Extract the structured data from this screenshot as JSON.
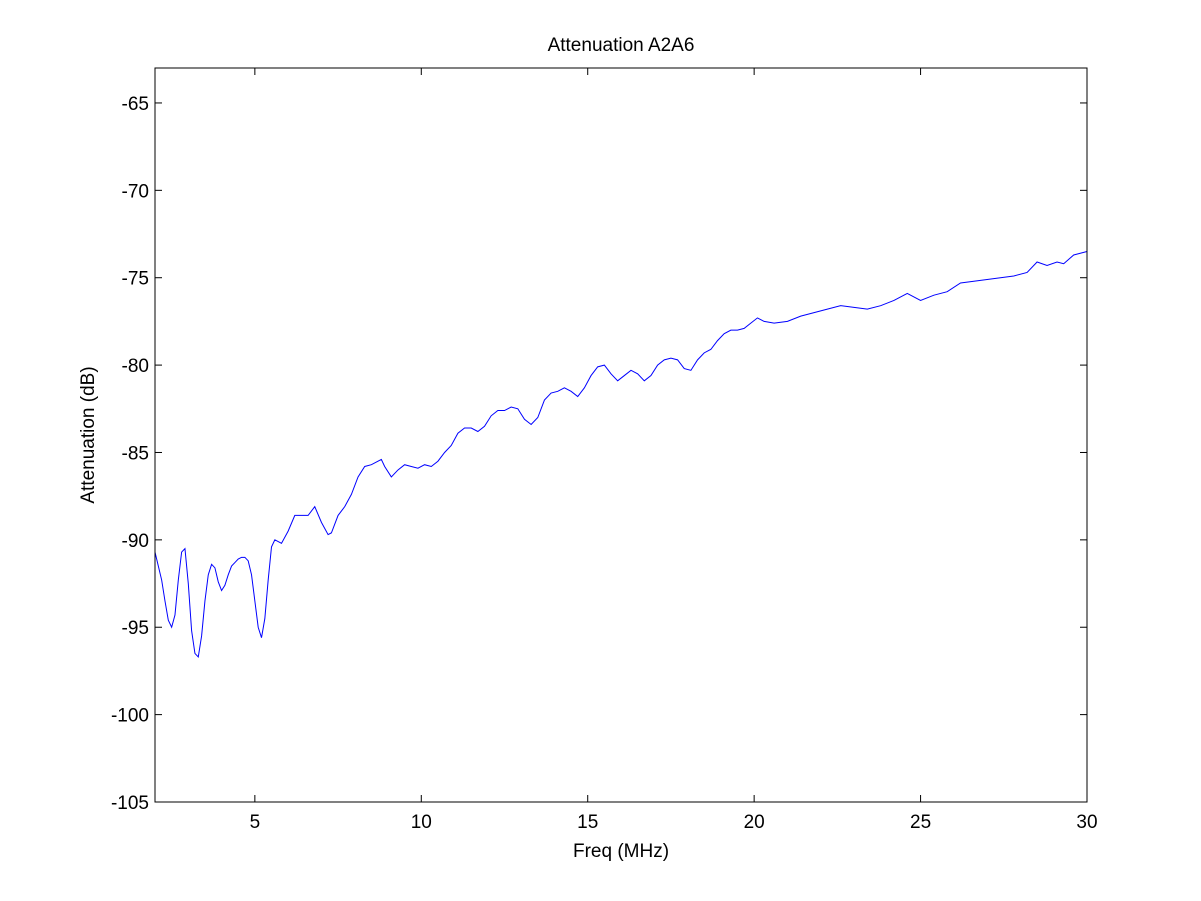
{
  "chart_data": {
    "type": "line",
    "title": "Attenuation A2A6",
    "xlabel": "Freq (MHz)",
    "ylabel": "Attenuation (dB)",
    "xlim": [
      2,
      30
    ],
    "ylim": [
      -105,
      -63
    ],
    "xticks": [
      5,
      10,
      15,
      20,
      25,
      30
    ],
    "yticks": [
      -105,
      -100,
      -95,
      -90,
      -85,
      -80,
      -75,
      -70,
      -65
    ],
    "xtick_labels": [
      "5",
      "10",
      "15",
      "20",
      "25",
      "30"
    ],
    "ytick_labels": [
      "-105",
      "-100",
      "-95",
      "-90",
      "-85",
      "-80",
      "-75",
      "-70",
      "-65"
    ],
    "grid": false,
    "series": [
      {
        "color": "#0000ff",
        "x": [
          2.0,
          2.2,
          2.3,
          2.4,
          2.5,
          2.6,
          2.7,
          2.8,
          2.9,
          3.0,
          3.1,
          3.2,
          3.3,
          3.4,
          3.5,
          3.6,
          3.7,
          3.8,
          3.9,
          4.0,
          4.1,
          4.2,
          4.3,
          4.4,
          4.5,
          4.6,
          4.7,
          4.8,
          4.9,
          5.0,
          5.1,
          5.2,
          5.3,
          5.4,
          5.5,
          5.6,
          5.8,
          6.0,
          6.2,
          6.4,
          6.6,
          6.8,
          7.0,
          7.2,
          7.3,
          7.5,
          7.7,
          7.9,
          8.1,
          8.3,
          8.5,
          8.7,
          8.8,
          8.9,
          9.1,
          9.3,
          9.5,
          9.7,
          9.9,
          10.1,
          10.3,
          10.5,
          10.7,
          10.9,
          11.1,
          11.3,
          11.5,
          11.7,
          11.9,
          12.1,
          12.3,
          12.5,
          12.7,
          12.9,
          13.1,
          13.3,
          13.5,
          13.7,
          13.9,
          14.1,
          14.3,
          14.5,
          14.7,
          14.9,
          15.1,
          15.3,
          15.5,
          15.7,
          15.9,
          16.1,
          16.3,
          16.5,
          16.7,
          16.9,
          17.1,
          17.3,
          17.5,
          17.7,
          17.9,
          18.1,
          18.3,
          18.5,
          18.7,
          18.9,
          19.1,
          19.3,
          19.5,
          19.7,
          19.9,
          20.1,
          20.3,
          20.6,
          21.0,
          21.4,
          21.8,
          22.2,
          22.6,
          23.0,
          23.4,
          23.8,
          24.2,
          24.6,
          25.0,
          25.4,
          25.8,
          26.2,
          26.6,
          27.0,
          27.4,
          27.8,
          28.2,
          28.5,
          28.8,
          29.1,
          29.3,
          29.6,
          30.0
        ],
        "y": [
          -90.7,
          -92.3,
          -93.5,
          -94.6,
          -95.0,
          -94.3,
          -92.3,
          -90.7,
          -90.5,
          -92.5,
          -95.2,
          -96.5,
          -96.7,
          -95.5,
          -93.5,
          -92.0,
          -91.4,
          -91.6,
          -92.4,
          -92.9,
          -92.6,
          -92.0,
          -91.5,
          -91.3,
          -91.1,
          -91.0,
          -91.0,
          -91.2,
          -92.0,
          -93.5,
          -95.0,
          -95.6,
          -94.5,
          -92.3,
          -90.4,
          -90.0,
          -90.2,
          -89.5,
          -88.6,
          -88.6,
          -88.6,
          -88.1,
          -89.0,
          -89.7,
          -89.6,
          -88.6,
          -88.1,
          -87.4,
          -86.4,
          -85.8,
          -85.7,
          -85.5,
          -85.4,
          -85.8,
          -86.4,
          -86.0,
          -85.7,
          -85.8,
          -85.9,
          -85.7,
          -85.8,
          -85.5,
          -85.0,
          -84.6,
          -83.9,
          -83.6,
          -83.6,
          -83.8,
          -83.5,
          -82.9,
          -82.6,
          -82.6,
          -82.4,
          -82.5,
          -83.1,
          -83.4,
          -83.0,
          -82.0,
          -81.6,
          -81.5,
          -81.3,
          -81.5,
          -81.8,
          -81.3,
          -80.6,
          -80.1,
          -80.0,
          -80.5,
          -80.9,
          -80.6,
          -80.3,
          -80.5,
          -80.9,
          -80.6,
          -80.0,
          -79.7,
          -79.6,
          -79.7,
          -80.2,
          -80.3,
          -79.7,
          -79.3,
          -79.1,
          -78.6,
          -78.2,
          -78.0,
          -78.0,
          -77.9,
          -77.6,
          -77.3,
          -77.5,
          -77.6,
          -77.5,
          -77.2,
          -77.0,
          -76.8,
          -76.6,
          -76.7,
          -76.8,
          -76.6,
          -76.3,
          -75.9,
          -76.3,
          -76.0,
          -75.8,
          -75.3,
          -75.2,
          -75.1,
          -75.0,
          -74.9,
          -74.7,
          -74.1,
          -74.3,
          -74.1,
          -74.2,
          -73.7,
          -73.5
        ]
      }
    ]
  }
}
